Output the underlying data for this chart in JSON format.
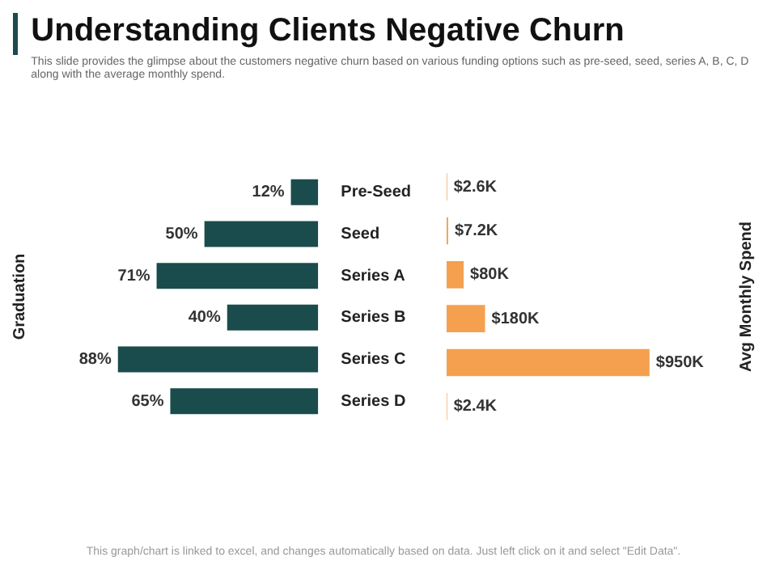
{
  "chart_data": [
    {
      "type": "bar",
      "orientation": "horizontal",
      "title": "Understanding Clients Negative Churn",
      "subtitle": "This slide provides the glimpse about the customers negative churn based on various funding options such as pre-seed, seed, series A, B, C, D along with the average monthly spend.",
      "ylabel": "Graduation",
      "categories": [
        "Pre-Seed",
        "Seed",
        "Series A",
        "Series B",
        "Series C",
        "Series D"
      ],
      "values": [
        12,
        50,
        71,
        40,
        88,
        65
      ],
      "value_labels": [
        "12%",
        "50%",
        "71%",
        "40%",
        "88%",
        "65%"
      ],
      "color": "#1b4c4d",
      "grid": false,
      "legend": false,
      "annotations": [
        "This graph/chart is linked to excel, and changes automatically based on data. Just left click on it and select \"Edit Data\"."
      ]
    },
    {
      "type": "bar",
      "orientation": "horizontal",
      "ylabel": "Avg Monthly Spend",
      "categories": [
        null,
        null,
        null,
        null,
        null,
        null
      ],
      "values": [
        2.6,
        7.2,
        80,
        180,
        950,
        2.4
      ],
      "value_labels": [
        "$2.6K",
        "$7.2K",
        "$80K",
        "$180K",
        "$950K",
        "$2.4K"
      ],
      "color": "#f4a04f",
      "grid": false,
      "legend": false,
      "tick_labels": false
    }
  ]
}
